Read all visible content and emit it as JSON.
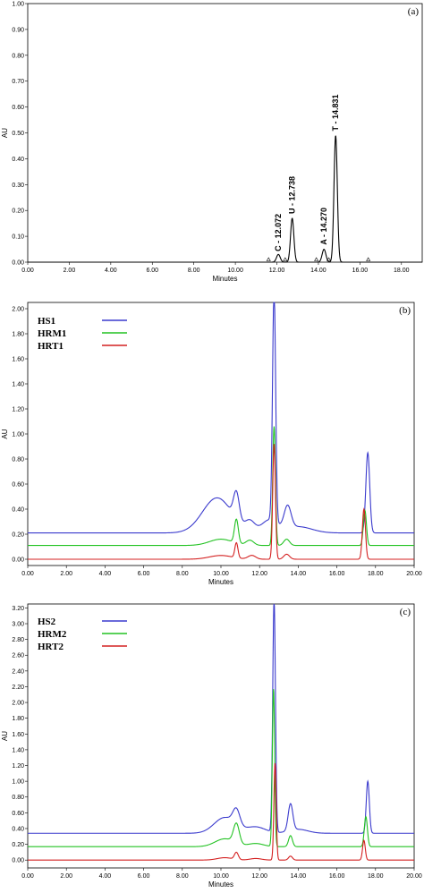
{
  "chart_data": [
    {
      "type": "line",
      "panel_label": "(a)",
      "xlabel": "Minutes",
      "ylabel": "AU",
      "xlim": [
        0,
        19
      ],
      "ylim": [
        0,
        1.0
      ],
      "xticks": [
        "0.00",
        "2.00",
        "4.00",
        "6.00",
        "8.00",
        "10.00",
        "12.00",
        "14.00",
        "16.00",
        "18.00"
      ],
      "yticks": [
        "0.00",
        "0.10",
        "0.20",
        "0.30",
        "0.40",
        "0.50",
        "0.60",
        "0.70",
        "0.80",
        "0.90",
        "1.00"
      ],
      "series": [
        {
          "color": "#000000",
          "baseline": 0.0,
          "peaks": [
            {
              "rt": 12.072,
              "height": 0.03,
              "width": 0.09
            },
            {
              "rt": 12.738,
              "height": 0.17,
              "width": 0.08
            },
            {
              "rt": 14.27,
              "height": 0.05,
              "width": 0.09
            },
            {
              "rt": 14.831,
              "height": 0.49,
              "width": 0.08
            }
          ]
        }
      ],
      "annotations": [
        {
          "text": "C - 12.072",
          "x": 12.072,
          "y": 0.035
        },
        {
          "text": "U - 12.738",
          "x": 12.738,
          "y": 0.18
        },
        {
          "text": "A - 14.270",
          "x": 14.27,
          "y": 0.06
        },
        {
          "text": "T - 14.831",
          "x": 14.831,
          "y": 0.5
        }
      ],
      "markers_x": [
        11.6,
        12.4,
        13.9,
        14.5,
        16.4
      ]
    },
    {
      "type": "line",
      "panel_label": "(b)",
      "xlabel": "Minutes",
      "ylabel": "AU",
      "xlim": [
        0,
        20
      ],
      "ylim": [
        -0.05,
        2.05
      ],
      "xticks": [
        "0.00",
        "2.00",
        "4.00",
        "6.00",
        "8.00",
        "10.00",
        "12.00",
        "14.00",
        "16.00",
        "18.00",
        "20.00"
      ],
      "yticks": [
        "0.00",
        "0.20",
        "0.40",
        "0.60",
        "0.80",
        "1.00",
        "1.20",
        "1.40",
        "1.60",
        "1.80",
        "2.00"
      ],
      "series": [
        {
          "name": "HS1",
          "color": "#3a3acd",
          "baseline": 0.21,
          "peaks": [
            {
              "rt": 9.8,
              "height": 0.28,
              "width": 0.75
            },
            {
              "rt": 10.8,
              "height": 0.22,
              "width": 0.15
            },
            {
              "rt": 11.5,
              "height": 0.08,
              "width": 0.25
            },
            {
              "rt": 12.75,
              "height": 1.85,
              "width": 0.08
            },
            {
              "rt": 12.5,
              "height": 0.1,
              "width": 0.4
            },
            {
              "rt": 13.45,
              "height": 0.18,
              "width": 0.18
            },
            {
              "rt": 14.0,
              "height": 0.05,
              "width": 0.7
            },
            {
              "rt": 17.6,
              "height": 0.64,
              "width": 0.1
            }
          ]
        },
        {
          "name": "HRM1",
          "color": "#22c222",
          "baseline": 0.11,
          "peaks": [
            {
              "rt": 10.0,
              "height": 0.05,
              "width": 0.6
            },
            {
              "rt": 10.8,
              "height": 0.19,
              "width": 0.1
            },
            {
              "rt": 11.5,
              "height": 0.04,
              "width": 0.2
            },
            {
              "rt": 12.75,
              "height": 0.95,
              "width": 0.07
            },
            {
              "rt": 13.4,
              "height": 0.05,
              "width": 0.15
            },
            {
              "rt": 17.45,
              "height": 0.28,
              "width": 0.08
            }
          ]
        },
        {
          "name": "HRT1",
          "color": "#d42020",
          "baseline": 0.0,
          "peaks": [
            {
              "rt": 10.0,
              "height": 0.03,
              "width": 0.6
            },
            {
              "rt": 10.8,
              "height": 0.12,
              "width": 0.08
            },
            {
              "rt": 11.6,
              "height": 0.03,
              "width": 0.2
            },
            {
              "rt": 12.75,
              "height": 0.92,
              "width": 0.07
            },
            {
              "rt": 13.4,
              "height": 0.04,
              "width": 0.15
            },
            {
              "rt": 17.4,
              "height": 0.4,
              "width": 0.08
            }
          ]
        }
      ]
    },
    {
      "type": "line",
      "panel_label": "(c)",
      "xlabel": "Minutes",
      "ylabel": "AU",
      "xlim": [
        0,
        20
      ],
      "ylim": [
        -0.1,
        3.25
      ],
      "xticks": [
        "0.00",
        "2.00",
        "4.00",
        "6.00",
        "8.00",
        "10.00",
        "12.00",
        "14.00",
        "16.00",
        "18.00",
        "20.00"
      ],
      "yticks": [
        "0.00",
        "0.20",
        "0.40",
        "0.60",
        "0.80",
        "1.00",
        "1.20",
        "1.40",
        "1.60",
        "1.80",
        "2.00",
        "2.20",
        "2.40",
        "2.60",
        "2.80",
        "3.00",
        "3.20"
      ],
      "series": [
        {
          "name": "HS2",
          "color": "#3a3acd",
          "baseline": 0.34,
          "peaks": [
            {
              "rt": 10.2,
              "height": 0.2,
              "width": 0.55
            },
            {
              "rt": 10.8,
              "height": 0.2,
              "width": 0.18
            },
            {
              "rt": 11.8,
              "height": 0.08,
              "width": 0.5
            },
            {
              "rt": 12.75,
              "height": 2.95,
              "width": 0.07
            },
            {
              "rt": 13.6,
              "height": 0.34,
              "width": 0.12
            },
            {
              "rt": 14.0,
              "height": 0.05,
              "width": 0.5
            },
            {
              "rt": 17.6,
              "height": 0.66,
              "width": 0.08
            }
          ]
        },
        {
          "name": "HRM2",
          "color": "#22c222",
          "baseline": 0.17,
          "peaks": [
            {
              "rt": 10.2,
              "height": 0.1,
              "width": 0.5
            },
            {
              "rt": 10.8,
              "height": 0.25,
              "width": 0.15
            },
            {
              "rt": 11.8,
              "height": 0.04,
              "width": 0.4
            },
            {
              "rt": 12.72,
              "height": 2.0,
              "width": 0.06
            },
            {
              "rt": 13.6,
              "height": 0.14,
              "width": 0.1
            },
            {
              "rt": 17.5,
              "height": 0.38,
              "width": 0.08
            }
          ]
        },
        {
          "name": "HRT2",
          "color": "#d42020",
          "baseline": 0.0,
          "peaks": [
            {
              "rt": 10.2,
              "height": 0.03,
              "width": 0.4
            },
            {
              "rt": 10.8,
              "height": 0.09,
              "width": 0.1
            },
            {
              "rt": 11.8,
              "height": 0.02,
              "width": 0.3
            },
            {
              "rt": 12.8,
              "height": 1.23,
              "width": 0.06
            },
            {
              "rt": 13.6,
              "height": 0.05,
              "width": 0.1
            },
            {
              "rt": 17.4,
              "height": 0.25,
              "width": 0.07
            }
          ]
        }
      ]
    }
  ]
}
